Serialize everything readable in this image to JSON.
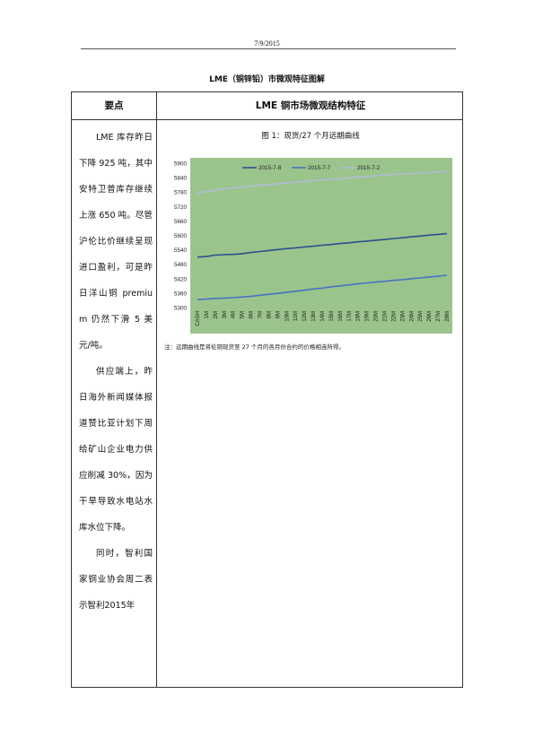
{
  "header": {
    "date": "7/9/2015"
  },
  "doc": {
    "title": "LME（铜锌铅）市微观特征图解"
  },
  "table": {
    "col_left_header": "要点",
    "col_right_header": "LME 铜市场微观结构特征",
    "paragraphs": [
      "LME 库存昨日下降 925 吨，其中安特卫普库存继续上涨 650 吨。尽管沪伦比价继续呈现进口盈利，可是昨日洋山铜 premium 仍然下滑 5 美元/吨。",
      "供应端上，昨日海外新闻媒体报道赞比亚计划下周给矿山企业电力供应削减 30%，因为干旱导致水电站水库水位下降。",
      "同时，智利国家铜业协会周二表示智利2015年"
    ],
    "figure_caption": "图 1：现货/27 个月远期曲线",
    "figure_note": "注：远期曲线是将伦铜现货至 27 个月的各月份合约的价格相连所得。"
  },
  "colors": {
    "plot_bg": "#9bc48c",
    "line_2015_7_8": "#2b4f8e",
    "line_2015_7_7": "#4673c4",
    "line_2015_7_2": "#b0bcd6"
  },
  "chart_data": {
    "type": "line",
    "x": [
      "CASH",
      "1M",
      "2M",
      "3M",
      "4M",
      "5M",
      "6M",
      "7M",
      "8M",
      "9M",
      "10M",
      "11M",
      "12M",
      "13M",
      "14M",
      "15M",
      "16M",
      "17M",
      "18M",
      "19M",
      "20M",
      "21M",
      "22M",
      "23M",
      "24M",
      "25M",
      "26M",
      "27M",
      "28M"
    ],
    "series": [
      {
        "name": "2015-7-8",
        "values": [
          5510,
          5512,
          5518,
          5520,
          5521,
          5524,
          5529,
          5533,
          5537,
          5541,
          5545,
          5548,
          5552,
          5555,
          5559,
          5562,
          5566,
          5569,
          5573,
          5576,
          5580,
          5583,
          5587,
          5590,
          5594,
          5597,
          5601,
          5604,
          5608
        ]
      },
      {
        "name": "2015-7-7",
        "values": [
          5333,
          5335,
          5338,
          5339,
          5341,
          5344,
          5347,
          5351,
          5355,
          5359,
          5363,
          5368,
          5372,
          5377,
          5381,
          5386,
          5390,
          5394,
          5399,
          5402,
          5406,
          5409,
          5413,
          5416,
          5420,
          5423,
          5427,
          5430,
          5434
        ]
      },
      {
        "name": "2015-7-2",
        "values": [
          5775,
          5782,
          5788,
          5793,
          5797,
          5801,
          5804,
          5808,
          5811,
          5815,
          5818,
          5821,
          5824,
          5827,
          5830,
          5833,
          5836,
          5839,
          5842,
          5845,
          5848,
          5851,
          5853,
          5855,
          5857,
          5859,
          5861,
          5864,
          5867
        ]
      }
    ],
    "ylim": [
      5300,
      5900
    ],
    "yticks": [
      "5900",
      "5840",
      "5780",
      "5720",
      "5660",
      "5600",
      "5540",
      "5480",
      "5420",
      "5360",
      "5300"
    ],
    "legend_position": "top",
    "grid": false
  }
}
